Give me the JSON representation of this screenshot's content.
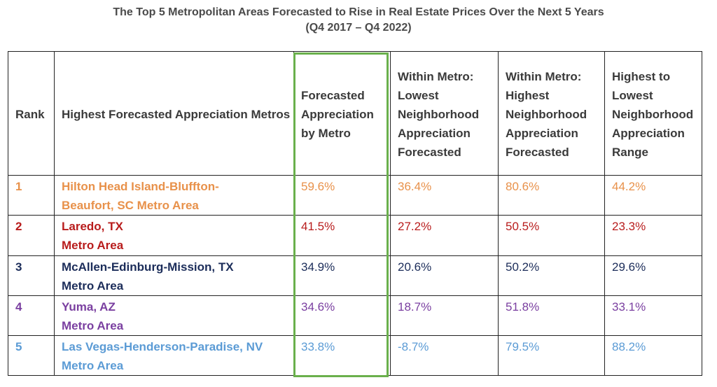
{
  "title": {
    "line1": "The Top 5 Metropolitan Areas Forecasted to Rise in Real Estate Prices Over the Next 5 Years",
    "line2": "(Q4 2017 – Q4 2022)"
  },
  "headers": {
    "rank": "Rank",
    "metro": "Highest Forecasted Appreciation Metros",
    "forecast": "Forecasted Appreciation by Metro",
    "lowest": "Within Metro: Lowest Neighborhood Appreciation Forecasted",
    "highest": "Within Metro: Highest Neighborhood Appreciation Forecasted",
    "range": "Highest to Lowest Neighborhood Appreciation Range"
  },
  "rows": [
    {
      "rank": "1",
      "metro_line1": "Hilton Head Island-Bluffton-",
      "metro_line2": "Beaufort, SC Metro Area",
      "forecast": "59.6%",
      "lowest": "36.4%",
      "highest": "80.6%",
      "range": "44.2%",
      "color": "#e8914a"
    },
    {
      "rank": "2",
      "metro_line1": "Laredo, TX",
      "metro_line2": "Metro Area",
      "forecast": "41.5%",
      "lowest": "27.2%",
      "highest": "50.5%",
      "range": "23.3%",
      "color": "#b81c1c"
    },
    {
      "rank": "3",
      "metro_line1": "McAllen-Edinburg-Mission, TX",
      "metro_line2": "Metro Area",
      "forecast": "34.9%",
      "lowest": "20.6%",
      "highest": "50.2%",
      "range": "29.6%",
      "color": "#1c2d5a"
    },
    {
      "rank": "4",
      "metro_line1": "Yuma, AZ",
      "metro_line2": "Metro Area",
      "forecast": "34.6%",
      "lowest": "18.7%",
      "highest": "51.8%",
      "range": "33.1%",
      "color": "#7a3fa0"
    },
    {
      "rank": "5",
      "metro_line1": "Las Vegas-Henderson-Paradise, NV",
      "metro_line2": "Metro Area",
      "forecast": "33.8%",
      "lowest": "-8.7%",
      "highest": "79.5%",
      "range": "88.2%",
      "color": "#5b9bd5"
    }
  ],
  "highlight_color": "#6ab04c"
}
